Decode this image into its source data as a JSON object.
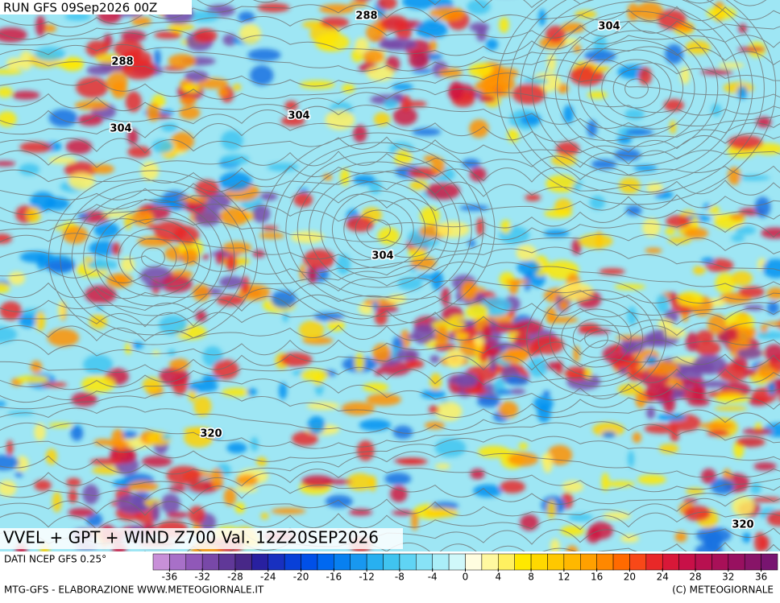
{
  "run_label": "RUN GFS 09Sep2026 00Z",
  "contour_labels": [
    "288",
    "304",
    "288",
    "304",
    "304",
    "304",
    "320",
    "320"
  ],
  "map_title": "VVEL + GPT + WIND Z700 Val. 12Z20SEP2026",
  "source_label": "DATI NCEP GFS 0.25°",
  "colorbar": {
    "lim": [
      -38,
      38
    ],
    "ticks": [
      -36,
      -32,
      -28,
      -24,
      -20,
      -16,
      -12,
      -8,
      -4,
      0,
      4,
      8,
      12,
      16,
      20,
      24,
      28,
      32,
      36
    ],
    "colors": [
      "#c890d8",
      "#a870c8",
      "#9058b8",
      "#7848a8",
      "#603898",
      "#482888",
      "#2820a0",
      "#1830c0",
      "#0840d8",
      "#0050e8",
      "#0068f0",
      "#0880f0",
      "#1898f0",
      "#28b0f0",
      "#40c4f0",
      "#60d4f4",
      "#88e2f6",
      "#aaeef8",
      "#d0f8fa",
      "#fffde0",
      "#fff8a0",
      "#fff060",
      "#ffe800",
      "#ffd800",
      "#ffc800",
      "#ffb800",
      "#ffa000",
      "#ff8800",
      "#ff6a00",
      "#f84818",
      "#e82828",
      "#d81838",
      "#c81048",
      "#b81050",
      "#a81058",
      "#981060",
      "#881468",
      "#781470"
    ]
  },
  "footer_left": "MTG-GFS - ELABORAZIONE WWW.METEOGIORNALE.IT",
  "footer_right": "(C) METEOGIORNALE"
}
